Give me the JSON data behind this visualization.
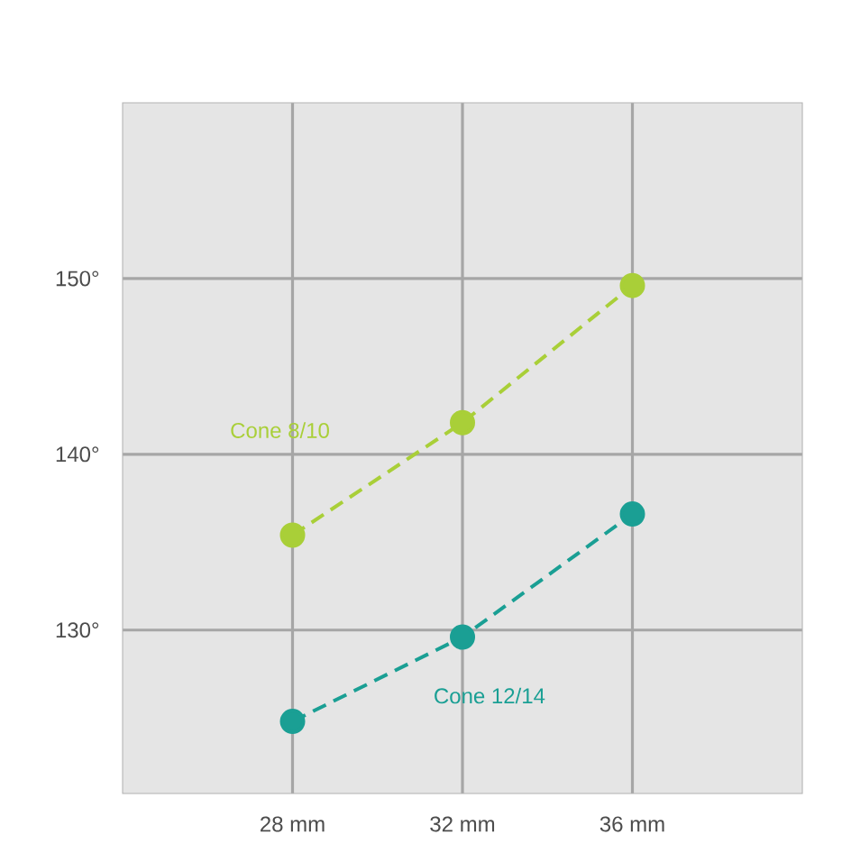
{
  "chart_data": {
    "type": "line",
    "x": [
      28,
      32,
      36
    ],
    "xlim": [
      24,
      40
    ],
    "ylim": [
      120.7,
      160
    ],
    "xticks": [
      {
        "value": 28,
        "label": "28 mm"
      },
      {
        "value": 32,
        "label": "32 mm"
      },
      {
        "value": 36,
        "label": "36 mm"
      }
    ],
    "yticks": [
      {
        "value": 130,
        "label": "130°"
      },
      {
        "value": 140,
        "label": "140°"
      },
      {
        "value": 150,
        "label": "150°"
      }
    ],
    "grid": true,
    "legend": false,
    "marker": "circle",
    "line_style": "dashed",
    "series": [
      {
        "name": "Cone 8/10",
        "color": "#a9cf38",
        "values": [
          135.4,
          141.8,
          149.6
        ]
      },
      {
        "name": "Cone 12/14",
        "color": "#1a9f94",
        "values": [
          124.8,
          129.6,
          136.6
        ]
      }
    ]
  }
}
